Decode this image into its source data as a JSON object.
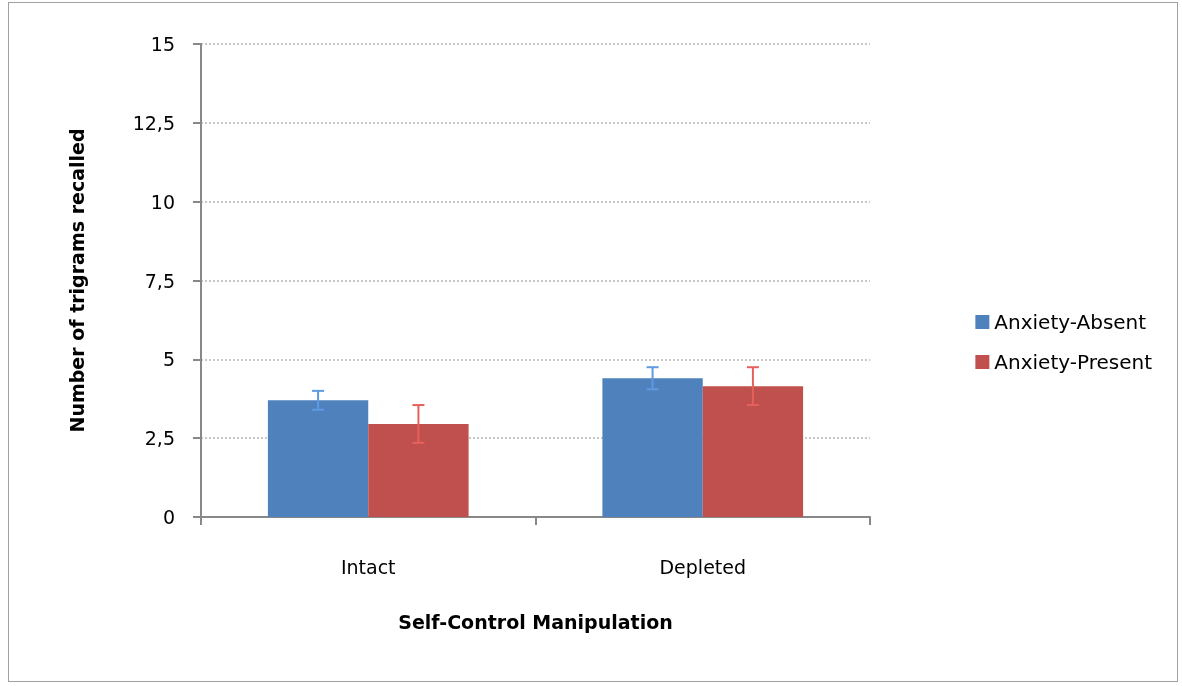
{
  "chart_data": {
    "type": "bar",
    "xlabel": "Self-Control Manipulation",
    "ylabel": "Number of trigrams recalled",
    "categories": [
      "Intact",
      "Depleted"
    ],
    "series": [
      {
        "name": "Anxiety-Absent",
        "color": "#4f81bd",
        "values": [
          3.7,
          4.4
        ],
        "errors": [
          0.3,
          0.35
        ]
      },
      {
        "name": "Anxiety-Present",
        "color": "#c0504d",
        "values": [
          2.95,
          4.15
        ],
        "errors": [
          0.6,
          0.6
        ]
      }
    ],
    "ylim": [
      0,
      15
    ],
    "yticks": [
      0,
      {
        "value": 2.5,
        "label": "2,5"
      },
      5,
      {
        "value": 7.5,
        "label": "7,5"
      },
      10,
      {
        "value": 12.5,
        "label": "12,5"
      },
      15
    ],
    "grid": "y",
    "legend": "right"
  }
}
